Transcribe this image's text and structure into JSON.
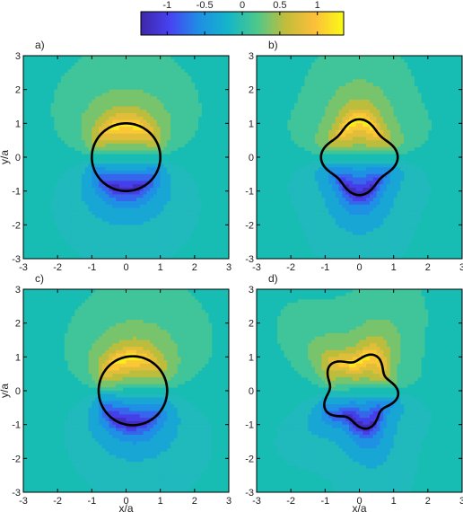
{
  "chart_data": {
    "type": "heatmap",
    "colorbar": {
      "ticks": [
        "-1",
        "-0.5",
        "0",
        "0.5",
        "1"
      ],
      "range": [
        -1.35,
        1.35
      ],
      "colormap": "parula",
      "colors": [
        "#3e26a8",
        "#4743f2",
        "#1f8fe5",
        "#14b5c9",
        "#4cc88c",
        "#c2bd3a",
        "#fcbf3a",
        "#f9fb15"
      ],
      "background_color": "#17bcb2"
    },
    "xlabel": "x/a",
    "ylabel": "y/a",
    "xlim": [
      -3,
      3
    ],
    "ylim": [
      -3,
      3
    ],
    "xticks": [
      "-3",
      "-2",
      "-1",
      "0",
      "1",
      "2",
      "3"
    ],
    "yticks": [
      "3",
      "2",
      "1",
      "0",
      "-1",
      "-2",
      "-3"
    ],
    "panels": [
      {
        "label": "a)",
        "shape": "circle",
        "show_xlabel": false,
        "show_ylabel": true
      },
      {
        "label": "b)",
        "shape": "four-lobe",
        "show_xlabel": false,
        "show_ylabel": false
      },
      {
        "label": "c)",
        "shape": "single-bulge",
        "show_xlabel": true,
        "show_ylabel": true
      },
      {
        "label": "d)",
        "shape": "wavy",
        "show_xlabel": true,
        "show_ylabel": false
      }
    ]
  }
}
